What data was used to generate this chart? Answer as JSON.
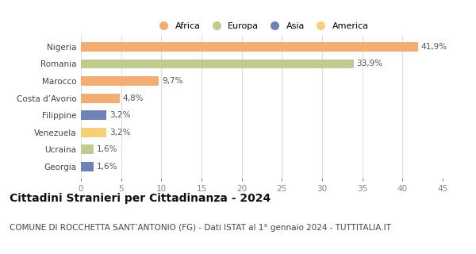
{
  "categories": [
    "Nigeria",
    "Romania",
    "Marocco",
    "Costa d’Avorio",
    "Filippine",
    "Venezuela",
    "Ucraina",
    "Georgia"
  ],
  "values": [
    41.9,
    33.9,
    9.7,
    4.8,
    3.2,
    3.2,
    1.6,
    1.6
  ],
  "labels": [
    "41,9%",
    "33,9%",
    "9,7%",
    "4,8%",
    "3,2%",
    "3,2%",
    "1,6%",
    "1,6%"
  ],
  "colors": [
    "#F2AE72",
    "#BFCC8F",
    "#F2AE72",
    "#F2AE72",
    "#6E82B8",
    "#F5CF7A",
    "#BFCC8F",
    "#6E82B8"
  ],
  "legend_labels": [
    "Africa",
    "Europa",
    "Asia",
    "America"
  ],
  "legend_colors": [
    "#F2AE72",
    "#BFCC8F",
    "#6E82B8",
    "#F5CF7A"
  ],
  "xlim": [
    0,
    45
  ],
  "xticks": [
    0,
    5,
    10,
    15,
    20,
    25,
    30,
    35,
    40,
    45
  ],
  "title": "Cittadini Stranieri per Cittadinanza - 2024",
  "subtitle": "COMUNE DI ROCCHETTA SANT’ANTONIO (FG) - Dati ISTAT al 1° gennaio 2024 - TUTTITALIA.IT",
  "background_color": "#ffffff",
  "grid_color": "#dddddd",
  "bar_height": 0.55,
  "title_fontsize": 10,
  "subtitle_fontsize": 7.5,
  "label_fontsize": 7.5,
  "tick_fontsize": 7.5,
  "legend_fontsize": 8
}
